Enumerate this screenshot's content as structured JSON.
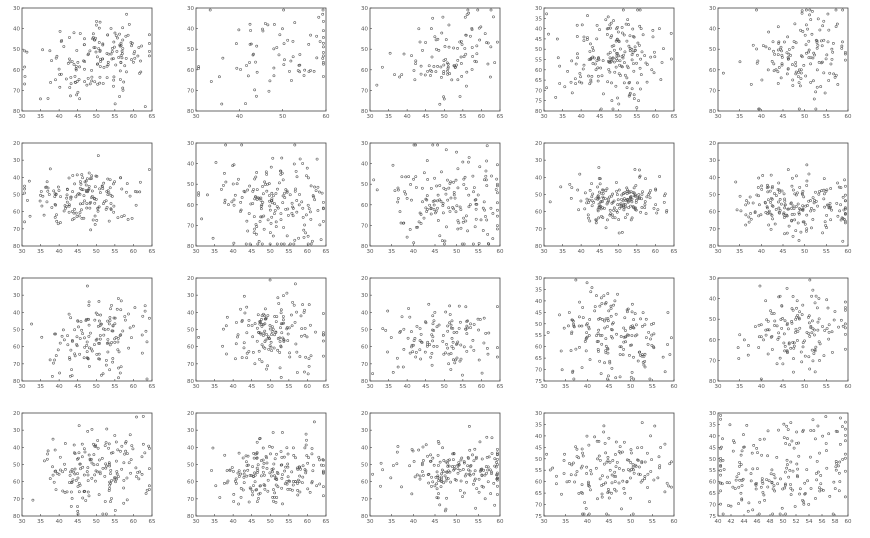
{
  "chart_data": [
    {
      "type": "scatter",
      "xlim": [
        30,
        65
      ],
      "ylim": [
        30,
        80
      ],
      "xticks": [
        "30",
        "35",
        "40",
        "45",
        "50",
        "55",
        "60",
        "65"
      ],
      "yticks": [
        "30",
        "40",
        "50",
        "60",
        "70",
        "80"
      ],
      "seed": 11,
      "count": 170,
      "cx": [
        47,
        54
      ],
      "cy": [
        58,
        52
      ],
      "sx": [
        7,
        5
      ],
      "sy": [
        10,
        9
      ],
      "grid": false
    },
    {
      "type": "scatter",
      "xlim": [
        30,
        60
      ],
      "ylim": [
        30,
        80
      ],
      "xticks": [
        "30",
        "40",
        "50",
        "60"
      ],
      "yticks": [
        "30",
        "40",
        "50",
        "60",
        "70",
        "80"
      ],
      "seed": 12,
      "count": 80,
      "cx": [
        45,
        55
      ],
      "cy": [
        55,
        48
      ],
      "sx": [
        8,
        6
      ],
      "sy": [
        11,
        13
      ],
      "grid": false
    },
    {
      "type": "scatter",
      "xlim": [
        30,
        65
      ],
      "ylim": [
        30,
        80
      ],
      "xticks": [
        "30",
        "35",
        "40",
        "45",
        "50",
        "55",
        "60",
        "65"
      ],
      "yticks": [
        "30",
        "40",
        "50",
        "60",
        "70",
        "80"
      ],
      "seed": 13,
      "count": 110,
      "cx": [
        48,
        55
      ],
      "cy": [
        58,
        48
      ],
      "sx": [
        7,
        5
      ],
      "sy": [
        9,
        9
      ],
      "grid": false
    },
    {
      "type": "scatter",
      "xlim": [
        30,
        65
      ],
      "ylim": [
        30,
        80
      ],
      "xticks": [
        "30",
        "35",
        "40",
        "45",
        "50",
        "55",
        "60",
        "65"
      ],
      "yticks": [
        "30",
        "35",
        "40",
        "45",
        "50",
        "55",
        "60",
        "65",
        "70",
        "75",
        "80"
      ],
      "seed": 14,
      "count": 200,
      "cx": [
        46,
        52
      ],
      "cy": [
        55,
        55
      ],
      "sx": [
        6,
        6
      ],
      "sy": [
        11,
        11
      ],
      "grid": false
    },
    {
      "type": "scatter",
      "xlim": [
        30,
        60
      ],
      "ylim": [
        30,
        80
      ],
      "xticks": [
        "30",
        "35",
        "40",
        "45",
        "50",
        "55",
        "60"
      ],
      "yticks": [
        "30",
        "40",
        "50",
        "60",
        "70",
        "80"
      ],
      "seed": 15,
      "count": 150,
      "cx": [
        47,
        53
      ],
      "cy": [
        56,
        52
      ],
      "sx": [
        5,
        5
      ],
      "sy": [
        11,
        10
      ],
      "grid": false
    },
    {
      "type": "scatter",
      "xlim": [
        30,
        65
      ],
      "ylim": [
        20,
        80
      ],
      "xticks": [
        "30",
        "35",
        "40",
        "45",
        "50",
        "55",
        "60",
        "65"
      ],
      "yticks": [
        "20",
        "30",
        "40",
        "50",
        "60",
        "70",
        "80"
      ],
      "seed": 21,
      "count": 170,
      "cx": [
        42,
        52
      ],
      "cy": [
        52,
        50
      ],
      "sx": [
        6,
        6
      ],
      "sy": [
        8,
        8
      ],
      "grid": false
    },
    {
      "type": "scatter",
      "xlim": [
        30,
        65
      ],
      "ylim": [
        30,
        80
      ],
      "xticks": [
        "30",
        "35",
        "40",
        "45",
        "50",
        "55",
        "60",
        "65"
      ],
      "yticks": [
        "30",
        "40",
        "50",
        "60",
        "70",
        "80"
      ],
      "seed": 22,
      "count": 190,
      "cx": [
        47,
        55
      ],
      "cy": [
        58,
        60
      ],
      "sx": [
        6,
        6
      ],
      "sy": [
        11,
        11
      ],
      "grid": false
    },
    {
      "type": "scatter",
      "xlim": [
        30,
        60
      ],
      "ylim": [
        30,
        80
      ],
      "xticks": [
        "30",
        "35",
        "40",
        "45",
        "50",
        "55",
        "60"
      ],
      "yticks": [
        "30",
        "40",
        "50",
        "60",
        "70",
        "80"
      ],
      "seed": 23,
      "count": 170,
      "cx": [
        44,
        52
      ],
      "cy": [
        58,
        56
      ],
      "sx": [
        6,
        6
      ],
      "sy": [
        11,
        11
      ],
      "grid": false
    },
    {
      "type": "scatter",
      "xlim": [
        30,
        65
      ],
      "ylim": [
        20,
        80
      ],
      "xticks": [
        "30",
        "35",
        "40",
        "45",
        "50",
        "55",
        "60",
        "65"
      ],
      "yticks": [
        "20",
        "30",
        "40",
        "50",
        "60",
        "70",
        "80"
      ],
      "seed": 24,
      "count": 190,
      "cx": [
        45,
        53
      ],
      "cy": [
        55,
        52
      ],
      "sx": [
        5,
        5
      ],
      "sy": [
        7,
        7
      ],
      "grid": false
    },
    {
      "type": "scatter",
      "xlim": [
        30,
        60
      ],
      "ylim": [
        20,
        80
      ],
      "xticks": [
        "30",
        "35",
        "40",
        "45",
        "50",
        "55",
        "60"
      ],
      "yticks": [
        "20",
        "30",
        "40",
        "50",
        "60",
        "70",
        "80"
      ],
      "seed": 25,
      "count": 200,
      "cx": [
        43,
        53
      ],
      "cy": [
        56,
        55
      ],
      "sx": [
        4,
        5
      ],
      "sy": [
        8,
        8
      ],
      "grid": false
    },
    {
      "type": "scatter",
      "xlim": [
        30,
        65
      ],
      "ylim": [
        20,
        80
      ],
      "xticks": [
        "30",
        "35",
        "40",
        "45",
        "50",
        "55",
        "60",
        "65"
      ],
      "yticks": [
        "20",
        "30",
        "40",
        "50",
        "60",
        "70",
        "80"
      ],
      "seed": 31,
      "count": 150,
      "cx": [
        46,
        54
      ],
      "cy": [
        56,
        52
      ],
      "sx": [
        6,
        6
      ],
      "sy": [
        11,
        11
      ],
      "grid": false
    },
    {
      "type": "scatter",
      "xlim": [
        30,
        65
      ],
      "ylim": [
        20,
        80
      ],
      "xticks": [
        "30",
        "35",
        "40",
        "45",
        "50",
        "55",
        "60",
        "65"
      ],
      "yticks": [
        "20",
        "30",
        "40",
        "50",
        "60",
        "70",
        "80"
      ],
      "seed": 32,
      "count": 160,
      "cx": [
        46,
        54
      ],
      "cy": [
        55,
        50
      ],
      "sx": [
        6,
        6
      ],
      "sy": [
        11,
        11
      ],
      "grid": false
    },
    {
      "type": "scatter",
      "xlim": [
        30,
        65
      ],
      "ylim": [
        20,
        80
      ],
      "xticks": [
        "30",
        "35",
        "40",
        "45",
        "50",
        "55",
        "60",
        "65"
      ],
      "yticks": [
        "20",
        "30",
        "40",
        "50",
        "60",
        "70",
        "80"
      ],
      "seed": 33,
      "count": 130,
      "cx": [
        45,
        53
      ],
      "cy": [
        58,
        52
      ],
      "sx": [
        6,
        6
      ],
      "sy": [
        9,
        9
      ],
      "grid": false
    },
    {
      "type": "scatter",
      "xlim": [
        30,
        60
      ],
      "ylim": [
        30,
        75
      ],
      "xticks": [
        "30",
        "35",
        "40",
        "45",
        "50",
        "55",
        "60"
      ],
      "yticks": [
        "30",
        "35",
        "40",
        "45",
        "50",
        "55",
        "60",
        "65",
        "70",
        "75"
      ],
      "seed": 34,
      "count": 180,
      "cx": [
        42,
        50
      ],
      "cy": [
        52,
        56
      ],
      "sx": [
        5,
        5
      ],
      "sy": [
        10,
        10
      ],
      "grid": false
    },
    {
      "type": "scatter",
      "xlim": [
        30,
        60
      ],
      "ylim": [
        30,
        80
      ],
      "xticks": [
        "30",
        "35",
        "40",
        "45",
        "50",
        "55",
        "60"
      ],
      "yticks": [
        "30",
        "40",
        "50",
        "60",
        "70",
        "80"
      ],
      "seed": 35,
      "count": 150,
      "cx": [
        45,
        52
      ],
      "cy": [
        56,
        55
      ],
      "sx": [
        5,
        5
      ],
      "sy": [
        10,
        10
      ],
      "grid": false
    },
    {
      "type": "scatter",
      "xlim": [
        30,
        65
      ],
      "ylim": [
        20,
        80
      ],
      "xticks": [
        "30",
        "35",
        "40",
        "45",
        "50",
        "55",
        "60",
        "65"
      ],
      "yticks": [
        "20",
        "30",
        "40",
        "50",
        "60",
        "70",
        "80"
      ],
      "seed": 41,
      "count": 180,
      "cx": [
        46,
        55
      ],
      "cy": [
        55,
        50
      ],
      "sx": [
        6,
        6
      ],
      "sy": [
        11,
        11
      ],
      "grid": false
    },
    {
      "type": "scatter",
      "xlim": [
        30,
        65
      ],
      "ylim": [
        20,
        80
      ],
      "xticks": [
        "30",
        "35",
        "40",
        "45",
        "50",
        "55",
        "60",
        "65"
      ],
      "yticks": [
        "20",
        "30",
        "40",
        "50",
        "60",
        "70",
        "80"
      ],
      "seed": 42,
      "count": 200,
      "cx": [
        46,
        55
      ],
      "cy": [
        58,
        52
      ],
      "sx": [
        6,
        6
      ],
      "sy": [
        10,
        10
      ],
      "grid": false
    },
    {
      "type": "scatter",
      "xlim": [
        30,
        60
      ],
      "ylim": [
        20,
        80
      ],
      "xticks": [
        "30",
        "35",
        "40",
        "45",
        "50",
        "55",
        "60"
      ],
      "yticks": [
        "20",
        "30",
        "40",
        "50",
        "60",
        "70",
        "80"
      ],
      "seed": 43,
      "count": 190,
      "cx": [
        46,
        54
      ],
      "cy": [
        56,
        52
      ],
      "sx": [
        6,
        5
      ],
      "sy": [
        9,
        9
      ],
      "grid": false
    },
    {
      "type": "scatter",
      "xlim": [
        30,
        60
      ],
      "ylim": [
        30,
        75
      ],
      "xticks": [
        "30",
        "35",
        "40",
        "45",
        "50",
        "55",
        "60"
      ],
      "yticks": [
        "30",
        "35",
        "40",
        "45",
        "50",
        "55",
        "60",
        "65",
        "70",
        "75"
      ],
      "seed": 44,
      "count": 160,
      "cx": [
        42,
        50
      ],
      "cy": [
        56,
        54
      ],
      "sx": [
        6,
        6
      ],
      "sy": [
        9,
        9
      ],
      "grid": false
    },
    {
      "type": "scatter",
      "xlim": [
        40,
        60
      ],
      "ylim": [
        30,
        75
      ],
      "xticks": [
        "40",
        "42",
        "44",
        "46",
        "48",
        "50",
        "52",
        "54",
        "56",
        "58",
        "60"
      ],
      "yticks": [
        "30",
        "35",
        "40",
        "45",
        "50",
        "55",
        "60",
        "65",
        "70",
        "75"
      ],
      "seed": 45,
      "count": 200,
      "cx": [
        45,
        54
      ],
      "cy": [
        56,
        55
      ],
      "sx": [
        4,
        4
      ],
      "sy": [
        11,
        11
      ],
      "grid": false
    }
  ]
}
